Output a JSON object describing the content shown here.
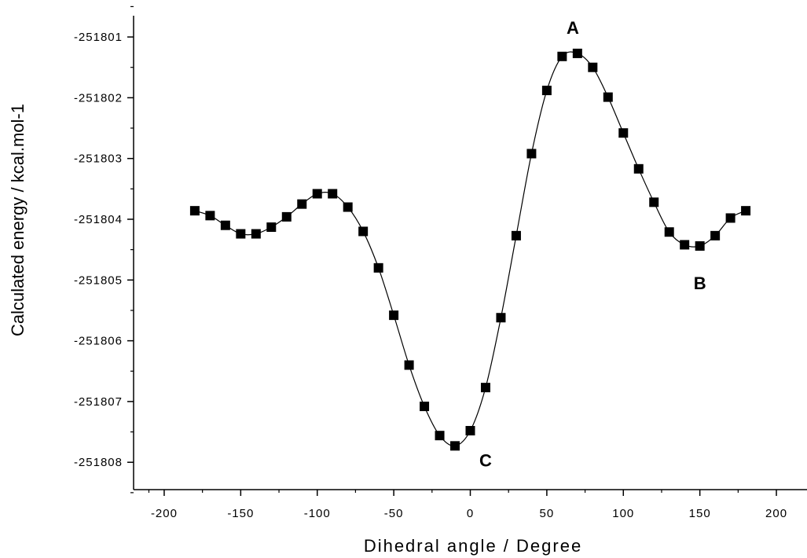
{
  "chart_data": {
    "type": "line",
    "xlabel": "Dihedral angle / Degree",
    "ylabel": "Calculated energy / kcal.mol-1",
    "xlim": [
      -220,
      220
    ],
    "ylim": [
      -251808.45,
      -251800.65
    ],
    "x_ticks": [
      -200,
      -150,
      -100,
      -50,
      0,
      50,
      100,
      150,
      200
    ],
    "x_tick_labels": [
      "-200",
      "-150",
      "-100",
      "-50",
      "0",
      "50",
      "100",
      "150",
      "200"
    ],
    "y_ticks": [
      -251801,
      -251802,
      -251803,
      -251804,
      -251805,
      -251806,
      -251807,
      -251808
    ],
    "y_tick_labels": [
      "-251801",
      "-251802",
      "-251803",
      "-251804",
      "-251805",
      "-251806",
      "-251807",
      "-251808"
    ],
    "grid": false,
    "marker": "square",
    "series": [
      {
        "x": [
          -180,
          -170,
          -160,
          -150,
          -140,
          -130,
          -120,
          -110,
          -100,
          -90,
          -80,
          -70,
          -60,
          -50,
          -40,
          -30,
          -20,
          -10,
          0,
          10,
          20,
          30,
          40,
          50,
          60,
          70,
          80,
          90,
          100,
          110,
          120,
          130,
          140,
          150,
          160,
          170,
          180
        ],
        "values": [
          -251803.86,
          -251803.94,
          -251804.1,
          -251804.24,
          -251804.24,
          -251804.13,
          -251803.96,
          -251803.75,
          -251803.58,
          -251803.58,
          -251803.8,
          -251804.2,
          -251804.8,
          -251805.58,
          -251806.4,
          -251807.08,
          -251807.56,
          -251807.73,
          -251807.48,
          -251806.77,
          -251805.62,
          -251804.27,
          -251802.92,
          -251801.88,
          -251801.32,
          -251801.27,
          -251801.5,
          -251801.99,
          -251802.58,
          -251803.17,
          -251803.72,
          -251804.21,
          -251804.42,
          -251804.44,
          -251804.27,
          -251803.98,
          -251803.86
        ]
      }
    ],
    "annotations": [
      {
        "text": "A",
        "x": 67,
        "y": -251800.95,
        "bold": true
      },
      {
        "text": "B",
        "x": 150,
        "y": -251805.15,
        "bold": true
      },
      {
        "text": "C",
        "x": 10,
        "y": -251808.07,
        "bold": true
      }
    ]
  }
}
